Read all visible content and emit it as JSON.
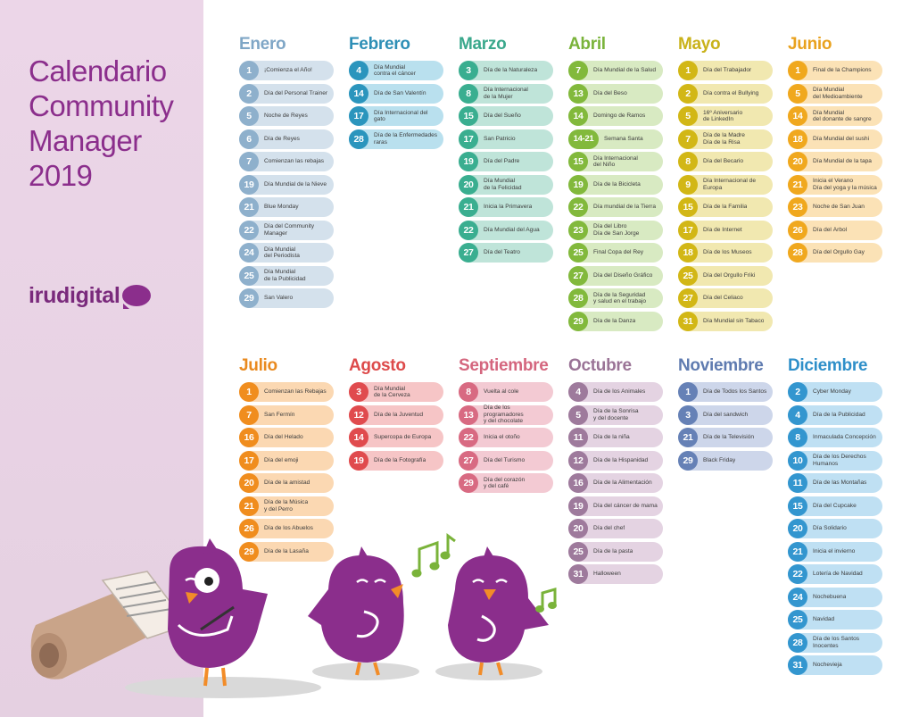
{
  "title_lines": [
    "Calendario",
    "Community",
    "Manager",
    "2019"
  ],
  "brand": "irudigital",
  "colors": {
    "sidebar": "#ecd6e8",
    "title": "#8b2e8c",
    "bird": "#8b2e8c"
  },
  "months": [
    {
      "name": "Enero",
      "color": "#7fa6c6",
      "dot": "#8eb0cc",
      "pill": "#d4e1ec",
      "events": [
        {
          "day": "1",
          "text": "¡Comienza el Año!"
        },
        {
          "day": "2",
          "text": "Día del Personal Trainer"
        },
        {
          "day": "5",
          "text": "Noche de Reyes"
        },
        {
          "day": "6",
          "text": "Día de Reyes"
        },
        {
          "day": "7",
          "text": "Comienzan las rebajas"
        },
        {
          "day": "19",
          "text": "Día Mundial de la Nieve"
        },
        {
          "day": "21",
          "text": "Blue Monday"
        },
        {
          "day": "22",
          "text": "Día del Community\nManager"
        },
        {
          "day": "24",
          "text": "Día Mundial\ndel Periodista"
        },
        {
          "day": "25",
          "text": "Día Mundial\nde la Publicidad"
        },
        {
          "day": "29",
          "text": "San Valero"
        }
      ]
    },
    {
      "name": "Febrero",
      "color": "#2e8fb6",
      "dot": "#2b95bd",
      "pill": "#b9e0ee",
      "events": [
        {
          "day": "4",
          "text": "Día Mundial\ncontra el cáncer"
        },
        {
          "day": "14",
          "text": "Día de San Valentín"
        },
        {
          "day": "17",
          "text": "Día Internacional del gato"
        },
        {
          "day": "28",
          "text": "Día de la Enfermedades\nraras"
        }
      ]
    },
    {
      "name": "Marzo",
      "color": "#3aa88c",
      "dot": "#3aae90",
      "pill": "#bfe4d9",
      "events": [
        {
          "day": "3",
          "text": "Día de la Naturaleza"
        },
        {
          "day": "8",
          "text": "Día Internacional\nde la Mujer"
        },
        {
          "day": "15",
          "text": "Día del Sueño"
        },
        {
          "day": "17",
          "text": "San Patricio"
        },
        {
          "day": "19",
          "text": "Día del Padre"
        },
        {
          "day": "20",
          "text": "Día Mundial\nde la Felicidad"
        },
        {
          "day": "21",
          "text": "Inicia la Primavera"
        },
        {
          "day": "22",
          "text": "Día Mundial del Agua"
        },
        {
          "day": "27",
          "text": "Día del Teatro"
        }
      ]
    },
    {
      "name": "Abril",
      "color": "#7ab33a",
      "dot": "#82b93c",
      "pill": "#d8eac2",
      "events": [
        {
          "day": "7",
          "text": "Día Mundial de la Salud"
        },
        {
          "day": "13",
          "text": "Día del Beso"
        },
        {
          "day": "14",
          "text": "Domingo de Ramos"
        },
        {
          "day": "14-21",
          "text": "Semana Santa",
          "wide": true
        },
        {
          "day": "15",
          "text": "Día Internacional\ndel Niño"
        },
        {
          "day": "19",
          "text": "Día de la Bicicleta"
        },
        {
          "day": "22",
          "text": "Día mundial de la Tierra"
        },
        {
          "day": "23",
          "text": "Día del Libro\nDía de San Jorge"
        },
        {
          "day": "25",
          "text": "Final Copa del Rey"
        },
        {
          "day": "27",
          "text": "Día del Diseño Gráfico"
        },
        {
          "day": "28",
          "text": "Día de la Seguridad\ny salud en el trabajo"
        },
        {
          "day": "29",
          "text": "Día de la Danza"
        }
      ]
    },
    {
      "name": "Mayo",
      "color": "#c9b21a",
      "dot": "#d2b716",
      "pill": "#f1e8b0",
      "events": [
        {
          "day": "1",
          "text": "Día del Trabajador"
        },
        {
          "day": "2",
          "text": "Día contra el Bullying"
        },
        {
          "day": "5",
          "text": "16º Aniversario\nde LinkedIn"
        },
        {
          "day": "7",
          "text": "Día de la Madre\nDía de la Risa"
        },
        {
          "day": "8",
          "text": "Día del Becario"
        },
        {
          "day": "9",
          "text": "Día Internacional de\nEuropa"
        },
        {
          "day": "15",
          "text": "Día de la Familia"
        },
        {
          "day": "17",
          "text": "Día de Internet"
        },
        {
          "day": "18",
          "text": "Día de los Museos"
        },
        {
          "day": "25",
          "text": "Día del Orgullo Friki"
        },
        {
          "day": "27",
          "text": "Día del Celiaco"
        },
        {
          "day": "31",
          "text": "Día Mundial sin Tabaco"
        }
      ]
    },
    {
      "name": "Junio",
      "color": "#e9a21f",
      "dot": "#f0a81e",
      "pill": "#fbe2b6",
      "events": [
        {
          "day": "1",
          "text": "Final de la Champions"
        },
        {
          "day": "5",
          "text": "Día Mundial\ndel Medioambiente"
        },
        {
          "day": "14",
          "text": "Día Mundial\ndel donante de sangre"
        },
        {
          "day": "18",
          "text": "Día Mundial del sushi"
        },
        {
          "day": "20",
          "text": "Día Mundial de la tapa"
        },
        {
          "day": "21",
          "text": "Inicia el Verano\nDía del yoga y la música"
        },
        {
          "day": "23",
          "text": "Noche de San Juan"
        },
        {
          "day": "26",
          "text": "Día del Árbol"
        },
        {
          "day": "28",
          "text": "Día del Orgullo Gay"
        }
      ]
    },
    {
      "name": "Julio",
      "color": "#e98a1f",
      "dot": "#f08d1e",
      "pill": "#fbd8b2",
      "events": [
        {
          "day": "1",
          "text": "Comienzan las Rebajas"
        },
        {
          "day": "7",
          "text": "San Fermín"
        },
        {
          "day": "16",
          "text": "Día del Helado"
        },
        {
          "day": "17",
          "text": "Día del emoji"
        },
        {
          "day": "20",
          "text": "Día de la amistad"
        },
        {
          "day": "21",
          "text": "Día de la Música\ny del Perro"
        },
        {
          "day": "26",
          "text": "Día de los Abuelos"
        },
        {
          "day": "29",
          "text": "Día de la Lasaña"
        }
      ]
    },
    {
      "name": "Agosto",
      "color": "#dd4a4a",
      "dot": "#e04b4e",
      "pill": "#f6c5c6",
      "events": [
        {
          "day": "3",
          "text": "Día Mundial\nde la Cerveza"
        },
        {
          "day": "12",
          "text": "Día de la Juventud"
        },
        {
          "day": "14",
          "text": "Supercopa de Europa"
        },
        {
          "day": "19",
          "text": "Día de la Fotografía"
        }
      ]
    },
    {
      "name": "Septiembre",
      "color": "#d4667e",
      "dot": "#d86a82",
      "pill": "#f3cad3",
      "events": [
        {
          "day": "8",
          "text": "Vuelta al cole"
        },
        {
          "day": "13",
          "text": "Día de los programadores\ny del chocolate"
        },
        {
          "day": "22",
          "text": "Inicia el otoño"
        },
        {
          "day": "27",
          "text": "Día del Turismo"
        },
        {
          "day": "29",
          "text": "Día del corazón\ny del café"
        }
      ]
    },
    {
      "name": "Octubre",
      "color": "#9a7396",
      "dot": "#9e7a9c",
      "pill": "#e4d3e2",
      "events": [
        {
          "day": "4",
          "text": "Día de los Animales"
        },
        {
          "day": "5",
          "text": "Día de la Sonrisa\ny del docente"
        },
        {
          "day": "11",
          "text": "Día de la niña"
        },
        {
          "day": "12",
          "text": "Día de la Hispanidad"
        },
        {
          "day": "16",
          "text": "Día de la Alimentación"
        },
        {
          "day": "19",
          "text": "Día del cáncer de mama"
        },
        {
          "day": "20",
          "text": "Día del chef"
        },
        {
          "day": "25",
          "text": "Día de la pasta"
        },
        {
          "day": "31",
          "text": "Halloween"
        }
      ]
    },
    {
      "name": "Noviembre",
      "color": "#5f7bb0",
      "dot": "#6681b6",
      "pill": "#cdd6ea",
      "events": [
        {
          "day": "1",
          "text": "Día de Todos los Santos"
        },
        {
          "day": "3",
          "text": "Día del sandwich"
        },
        {
          "day": "21",
          "text": "Día de la Televisión"
        },
        {
          "day": "29",
          "text": "Black Friday"
        }
      ]
    },
    {
      "name": "Diciembre",
      "color": "#2e8fc9",
      "dot": "#3396cf",
      "pill": "#bfe0f3",
      "events": [
        {
          "day": "2",
          "text": "Cyber Monday"
        },
        {
          "day": "4",
          "text": "Día de la Publicidad"
        },
        {
          "day": "8",
          "text": "Inmaculada Concepción"
        },
        {
          "day": "10",
          "text": "Día de los Derechos\nHumanos"
        },
        {
          "day": "11",
          "text": "Día de las Montañas"
        },
        {
          "day": "15",
          "text": "Día del Cupcake"
        },
        {
          "day": "20",
          "text": "Día Solidario"
        },
        {
          "day": "21",
          "text": "Inicia el invierno"
        },
        {
          "day": "22",
          "text": "Lotería de Navidad"
        },
        {
          "day": "24",
          "text": "Nochebuena"
        },
        {
          "day": "25",
          "text": "Navidad"
        },
        {
          "day": "28",
          "text": "Día de los Santos\nInocentes"
        },
        {
          "day": "31",
          "text": "Nochevieja"
        }
      ]
    }
  ]
}
